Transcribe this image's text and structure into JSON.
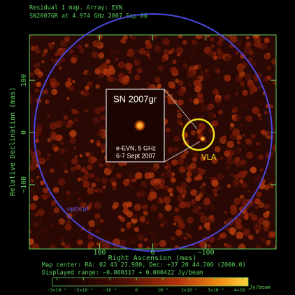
{
  "chart_data": {
    "type": "image",
    "title": "Residual I map.  Array: EVN",
    "subtitle": "SN2007GR at 4.974 GHz 2007 Sep 06",
    "xlabel": "Right Ascension  (mas)",
    "ylabel": "Relative Declination  (mas)",
    "xlim": [
      232,
      -232
    ],
    "xticks": [
      100,
      0,
      {
        "value": -100,
        "label": "−100"
      }
    ],
    "ylim": [
      -223,
      187
    ],
    "yticks": [
      100,
      0,
      {
        "value": -100,
        "label": "−100"
      }
    ],
    "annotations": {
      "inset_title": "SN 2007gr",
      "inset_line1": "e-EVN, 5 GHz",
      "inset_line2": "6-7 Sept 2007",
      "vla": "VLA",
      "optical": "optical"
    },
    "footer": [
      "Map center:  RA: 02 43 27.980,  Dec: +37 20 44.700 (2000.0)",
      "Displayed range: −0.000317 + 0.000422 Jy/beam"
    ],
    "colorbar": {
      "lim": [
        -0.000317,
        0.000422
      ],
      "label": "Jy/beam",
      "ticks": [
        {
          "value": -0.0003,
          "label": "−3×10⁻⁴"
        },
        {
          "value": -0.0002,
          "label": "−2×10⁻⁴"
        },
        {
          "value": -0.0001,
          "label": "−10⁻⁴"
        },
        0,
        {
          "value": 0.0001,
          "label": "10⁻⁴"
        },
        {
          "value": 0.0002,
          "label": "2×10⁻⁴"
        },
        {
          "value": 0.0003,
          "label": "3×10⁻⁴"
        },
        {
          "value": 0.0004,
          "label": "4×10⁻⁴"
        }
      ]
    }
  }
}
